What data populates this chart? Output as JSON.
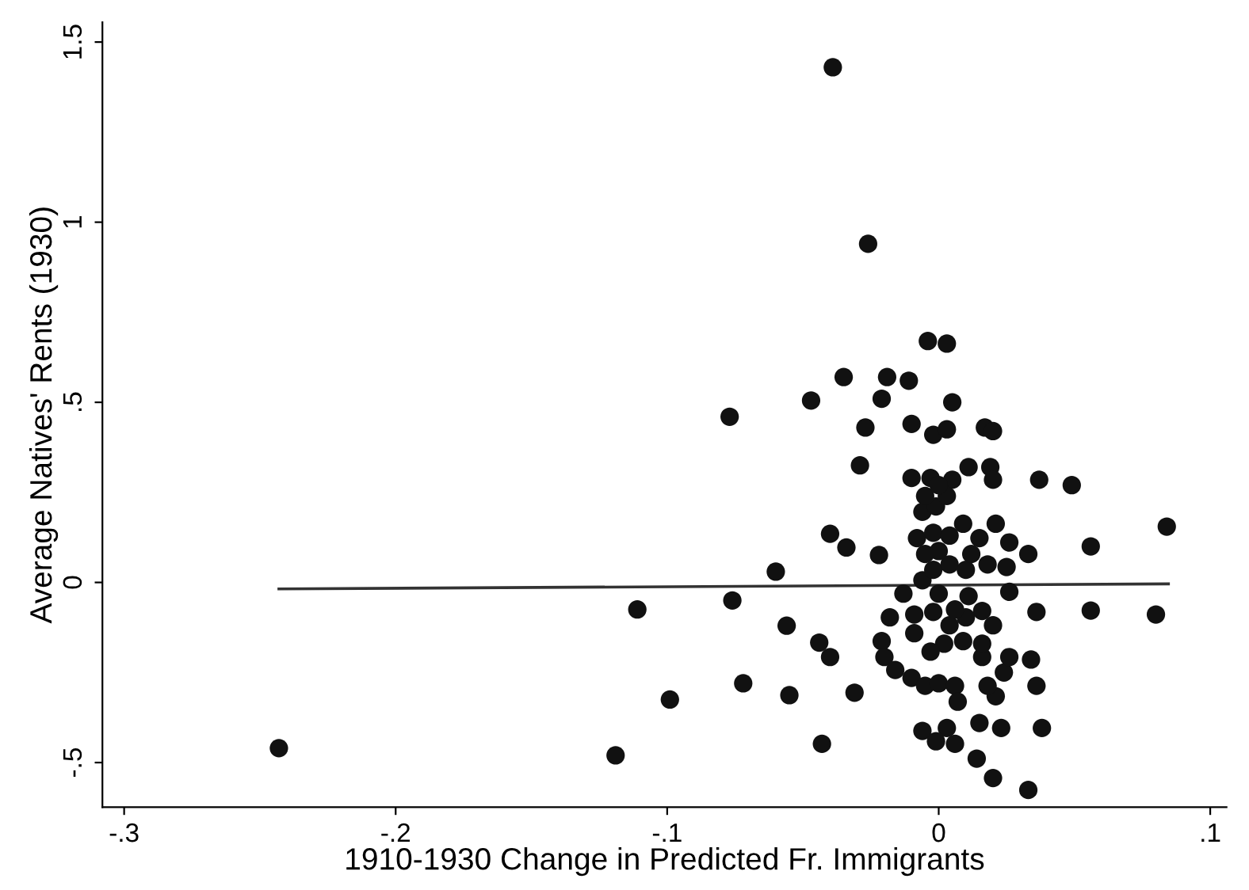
{
  "chart_data": {
    "type": "scatter",
    "xlabel": "1910-1930 Change in Predicted Fr. Immigrants",
    "ylabel": "Average Natives' Rents (1930)",
    "xlim": [
      -0.308,
      0.106
    ],
    "ylim": [
      -0.624,
      1.555
    ],
    "xticks": [
      {
        "value": -0.3,
        "label": "-.3"
      },
      {
        "value": -0.2,
        "label": "-.2"
      },
      {
        "value": -0.1,
        "label": "-.1"
      },
      0,
      {
        "value": 0.1,
        "label": ".1"
      }
    ],
    "yticks": [
      {
        "value": -0.5,
        "label": "-.5"
      },
      0,
      {
        "value": 0.5,
        "label": ".5"
      },
      1,
      {
        "value": 1.5,
        "label": "1.5"
      }
    ],
    "grid": false,
    "series": [
      {
        "color": "#111111",
        "marker": "circle",
        "x": [
          -0.243,
          -0.119,
          -0.111,
          -0.099,
          -0.077,
          -0.076,
          -0.072,
          -0.06,
          -0.056,
          -0.055,
          -0.047,
          -0.044,
          -0.043,
          -0.04,
          -0.039,
          -0.026,
          -0.004,
          0.003,
          -0.035,
          -0.019,
          -0.011,
          -0.021,
          0.005,
          -0.027,
          -0.01,
          -0.002,
          0.003,
          0.017,
          0.02,
          -0.029,
          -0.01,
          -0.003,
          0.005,
          0.011,
          0.019,
          0.02,
          0.037,
          0.049,
          0.084,
          0.056,
          -0.04,
          -0.034,
          -0.022,
          -0.031,
          0.036,
          0.056,
          0.08,
          0.034,
          0.036,
          0.038,
          0.026,
          0.033,
          0.026,
          0.021,
          0.009,
          0.015,
          0.025,
          0.018,
          -0.013,
          -0.018,
          -0.021,
          -0.02,
          -0.016,
          -0.01,
          -0.005,
          0.0,
          0.006,
          0.007,
          0.021,
          0.024,
          0.026,
          0.016,
          0.016,
          0.02,
          0.016,
          0.01,
          0.004,
          0.009,
          0.002,
          -0.003,
          -0.009,
          -0.009,
          -0.002,
          0.006,
          0.011,
          0.0,
          -0.006,
          -0.002,
          0.004,
          0.01,
          0.012,
          0.0,
          -0.005,
          -0.008,
          -0.002,
          0.004,
          -0.006,
          -0.001,
          0.003,
          -0.005,
          0.0,
          -0.006,
          0.003,
          -0.001,
          0.006,
          0.015,
          0.023,
          0.014,
          0.02,
          0.033,
          0.018
        ],
        "values": [
          -0.46,
          -0.48,
          -0.075,
          -0.325,
          0.46,
          -0.05,
          -0.28,
          0.03,
          -0.12,
          -0.313,
          0.505,
          -0.167,
          -0.448,
          -0.207,
          1.43,
          0.94,
          0.67,
          0.663,
          0.57,
          0.57,
          0.56,
          0.51,
          0.5,
          0.43,
          0.44,
          0.41,
          0.425,
          0.43,
          0.42,
          0.325,
          0.29,
          0.29,
          0.285,
          0.32,
          0.32,
          0.285,
          0.285,
          0.27,
          0.155,
          0.1,
          0.135,
          0.097,
          0.076,
          -0.306,
          -0.082,
          -0.078,
          -0.089,
          -0.214,
          -0.287,
          -0.404,
          -0.026,
          0.079,
          0.111,
          0.163,
          0.163,
          0.123,
          0.043,
          0.05,
          -0.031,
          -0.097,
          -0.163,
          -0.207,
          -0.243,
          -0.265,
          -0.287,
          -0.28,
          -0.287,
          -0.331,
          -0.316,
          -0.25,
          -0.207,
          -0.207,
          -0.17,
          -0.119,
          -0.079,
          -0.097,
          -0.119,
          -0.163,
          -0.17,
          -0.192,
          -0.141,
          -0.089,
          -0.082,
          -0.075,
          -0.038,
          -0.031,
          0.006,
          0.035,
          0.05,
          0.035,
          0.079,
          0.087,
          0.079,
          0.123,
          0.138,
          0.13,
          0.196,
          0.211,
          0.24,
          0.24,
          0.27,
          -0.412,
          -0.404,
          -0.441,
          -0.448,
          -0.39,
          -0.404,
          -0.489,
          -0.543,
          -0.576,
          -0.287
        ]
      },
      {
        "type": "line",
        "color": "#333333",
        "x": [
          -0.243,
          0.0846
        ],
        "values": [
          -0.018,
          -0.004
        ]
      }
    ]
  }
}
